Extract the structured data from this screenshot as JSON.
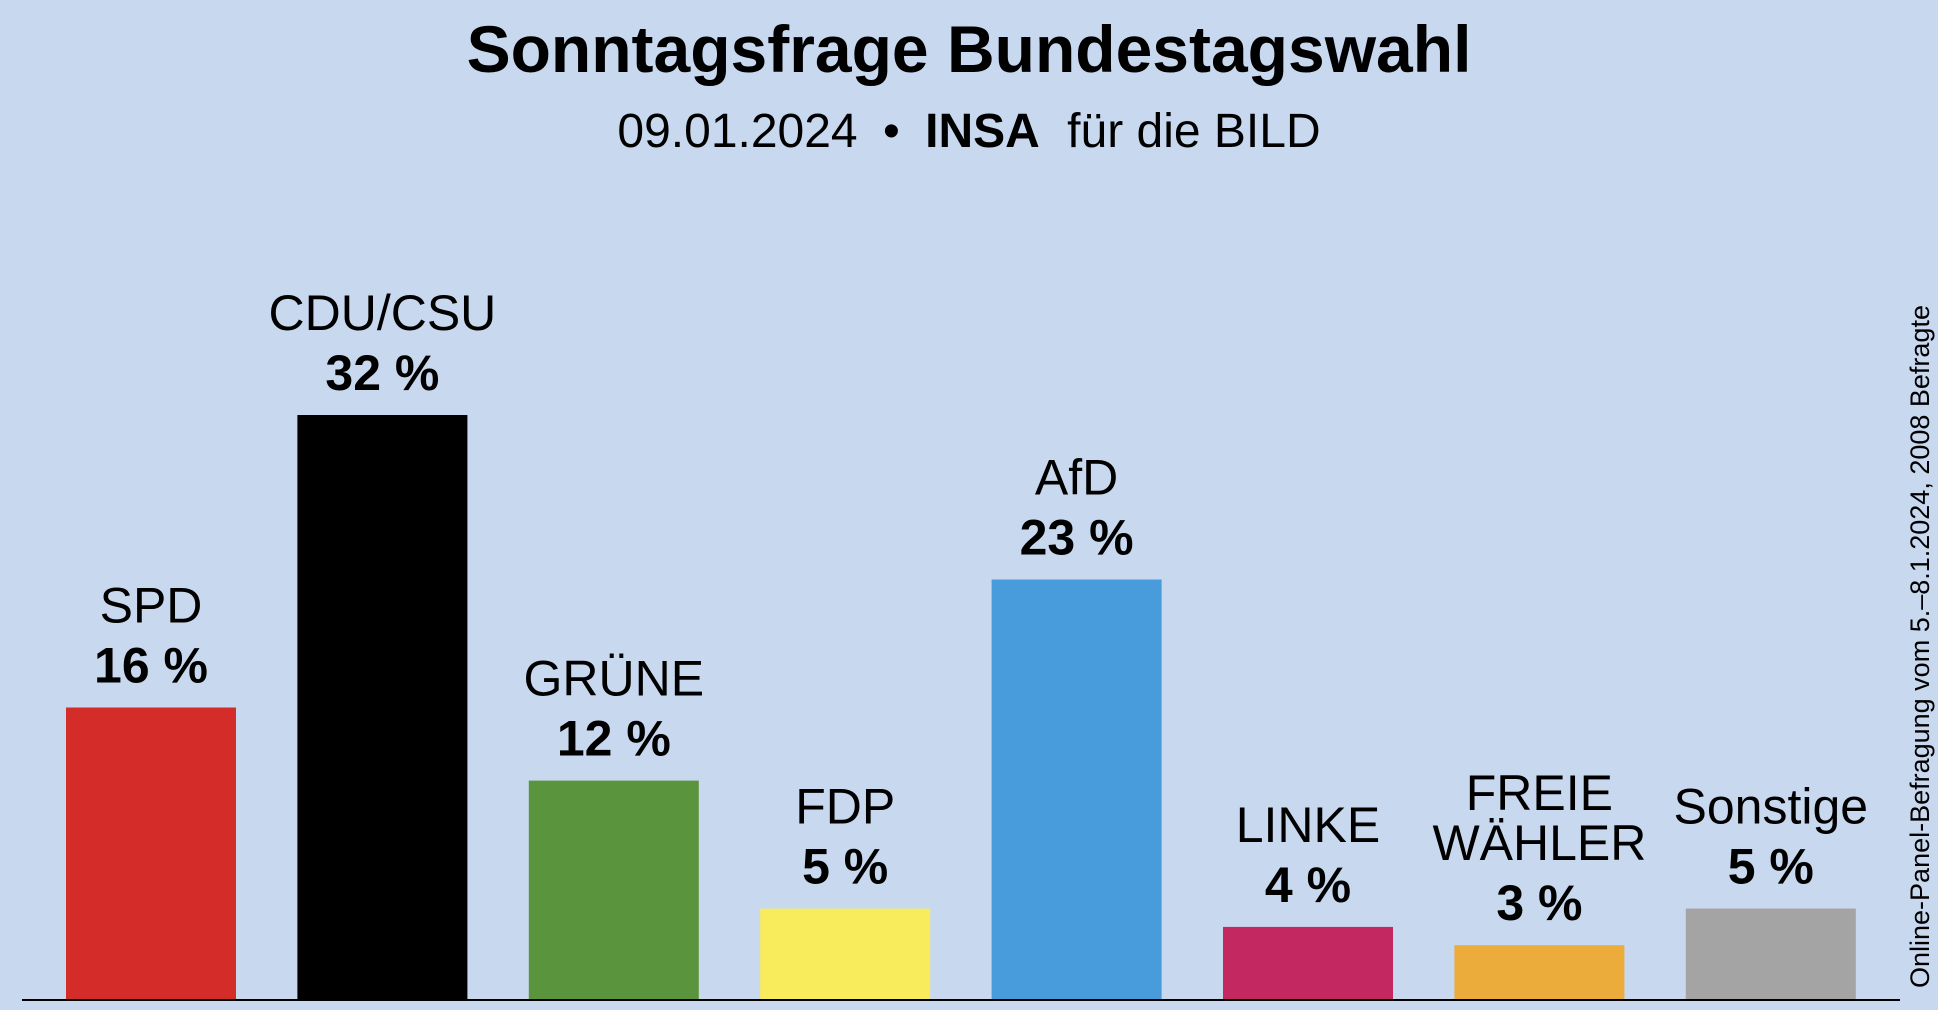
{
  "chart_data": {
    "type": "bar",
    "title": "Sonntagsfrage Bundestagswahl",
    "subtitle": {
      "date": "09.01.2024",
      "separator": "•",
      "institute": "INSA",
      "client": "für die BILD"
    },
    "source_note": "Online-Panel-Befragung vom 5.–8.1.2024, 2008 Befragte",
    "unit": "%",
    "ylim": [
      0,
      32
    ],
    "grid": false,
    "bars": [
      {
        "name": "spd",
        "label": [
          "SPD"
        ],
        "value": 16,
        "value_label": "16 %",
        "color": "#d42c28"
      },
      {
        "name": "cdu-csu",
        "label": [
          "CDU/CSU"
        ],
        "value": 32,
        "value_label": "32 %",
        "color": "#000000"
      },
      {
        "name": "gruene",
        "label": [
          "GRÜNE"
        ],
        "value": 12,
        "value_label": "12 %",
        "color": "#5a953d"
      },
      {
        "name": "fdp",
        "label": [
          "FDP"
        ],
        "value": 5,
        "value_label": "5 %",
        "color": "#f8ec5c"
      },
      {
        "name": "afd",
        "label": [
          "AfD"
        ],
        "value": 23,
        "value_label": "23 %",
        "color": "#489cdc"
      },
      {
        "name": "linke",
        "label": [
          "LINKE"
        ],
        "value": 4,
        "value_label": "4 %",
        "color": "#c42860"
      },
      {
        "name": "freie-waehler",
        "label": [
          "FREIE",
          "WÄHLER"
        ],
        "value": 3,
        "value_label": "3 %",
        "color": "#ecac3c"
      },
      {
        "name": "sonstige",
        "label": [
          "Sonstige"
        ],
        "value": 5,
        "value_label": "5 %",
        "color": "#a4a4a4"
      }
    ]
  }
}
